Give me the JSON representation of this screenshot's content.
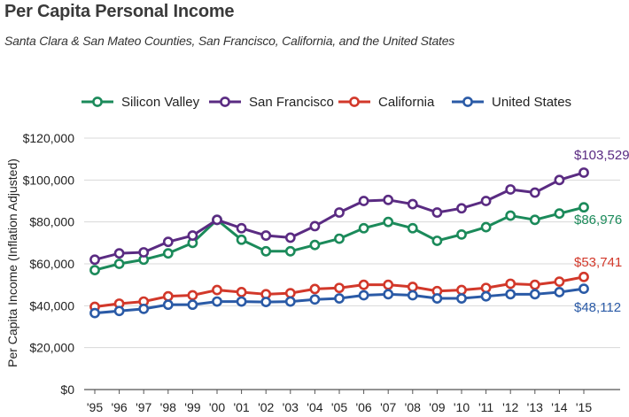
{
  "header": {
    "title": "Per Capita Personal Income",
    "subtitle": "Santa Clara & San Mateo Counties, San Francisco, California, and the United States"
  },
  "chart_data": {
    "type": "line",
    "title": "Per Capita Personal Income",
    "subtitle": "Santa Clara & San Mateo Counties, San Francisco, California, and the United States",
    "xlabel": "",
    "ylabel": "Per Capita Income (Inflation Adjusted)",
    "categories": [
      "'95",
      "'96",
      "'97",
      "'98",
      "'99",
      "'00",
      "'01",
      "'02",
      "'03",
      "'04",
      "'05",
      "'06",
      "'07",
      "'08",
      "'09",
      "'10",
      "'11",
      "'12",
      "'13",
      "'14",
      "'15"
    ],
    "yticks": [
      "$0",
      "$20,000",
      "$40,000",
      "$60,000",
      "$80,000",
      "$100,000",
      "$120,000"
    ],
    "ylim": [
      0,
      120000
    ],
    "grid": "horizontal",
    "legend_position": "top",
    "series": [
      {
        "name": "Silicon Valley",
        "color": "#1b8a5a",
        "values": [
          57000,
          60000,
          62000,
          65000,
          70000,
          81000,
          71500,
          66000,
          66000,
          69000,
          72000,
          77000,
          80000,
          77000,
          71000,
          74000,
          77500,
          83000,
          81000,
          84000,
          86976
        ],
        "end_label": "$86,976"
      },
      {
        "name": "San Francisco",
        "color": "#5a2b82",
        "values": [
          62000,
          65000,
          65500,
          70500,
          73500,
          81000,
          77000,
          73500,
          72500,
          78000,
          84500,
          90000,
          90500,
          88500,
          84500,
          86500,
          90000,
          95500,
          94000,
          100000,
          103529
        ],
        "end_label": "$103,529"
      },
      {
        "name": "California",
        "color": "#d2382a",
        "values": [
          39500,
          41000,
          42000,
          44500,
          45000,
          47500,
          46500,
          45500,
          46000,
          48000,
          48500,
          50000,
          50000,
          49000,
          47000,
          47500,
          48500,
          50500,
          50000,
          51500,
          53741
        ],
        "end_label": "$53,741"
      },
      {
        "name": "United States",
        "color": "#2a5aa6",
        "values": [
          36500,
          37500,
          38500,
          40500,
          40500,
          42000,
          42000,
          41800,
          42000,
          43000,
          43500,
          45000,
          45500,
          45000,
          43500,
          43500,
          44500,
          45500,
          45500,
          46500,
          48112
        ],
        "end_label": "$48,112"
      }
    ]
  }
}
